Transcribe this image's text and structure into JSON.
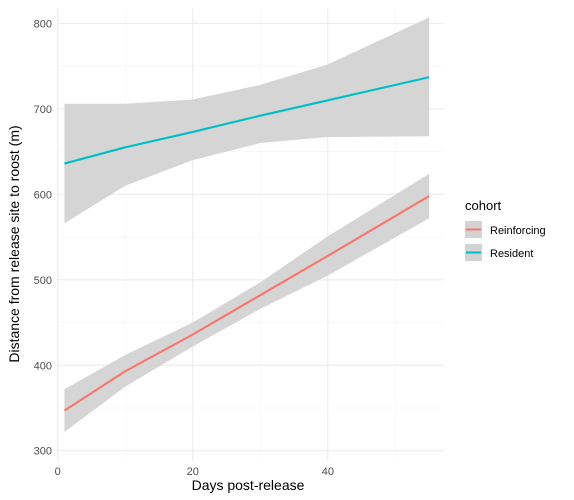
{
  "chart_data": {
    "type": "line",
    "title": "",
    "xlabel": "Days post-release",
    "ylabel": "Distance from release site to roost (m)",
    "xlim": [
      -0.1,
      57.2
    ],
    "ylim": [
      288,
      818
    ],
    "x_ticks": [
      0,
      20,
      40
    ],
    "y_ticks": [
      300,
      400,
      500,
      600,
      700,
      800
    ],
    "grid": true,
    "legend": {
      "title": "cohort",
      "position": "right"
    },
    "series": [
      {
        "name": "Reinforcing",
        "color": "#F8766D",
        "x": [
          1,
          10,
          20,
          30,
          40,
          55
        ],
        "y": [
          347,
          393,
          436,
          482,
          528,
          598
        ],
        "lower": [
          322,
          375,
          422,
          466,
          505,
          572
        ],
        "upper": [
          372,
          412,
          450,
          497,
          551,
          624
        ]
      },
      {
        "name": "Resident",
        "color": "#00BFC4",
        "x": [
          1,
          10,
          20,
          30,
          40,
          55
        ],
        "y": [
          636,
          655,
          673,
          692,
          710,
          737
        ],
        "lower": [
          566,
          610,
          640,
          660,
          667,
          668
        ],
        "upper": [
          706,
          706,
          711,
          728,
          752,
          807
        ]
      }
    ],
    "ribbon_color": "#D3D3D3"
  }
}
